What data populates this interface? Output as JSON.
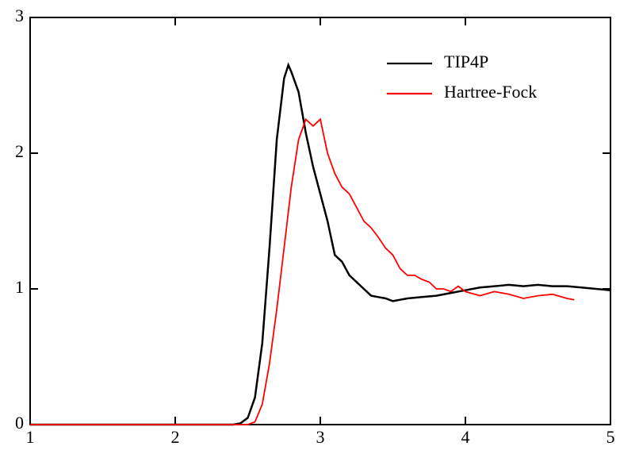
{
  "chart_data": {
    "type": "line",
    "xlim": [
      1,
      5
    ],
    "ylim": [
      0,
      3
    ],
    "xticks": [
      1,
      2,
      3,
      4,
      5
    ],
    "yticks": [
      0,
      1,
      2,
      3
    ],
    "legend": "upper-right",
    "series": [
      {
        "name": "TIP4P",
        "color": "#000000",
        "x": [
          1,
          1.5,
          2,
          2.4,
          2.45,
          2.5,
          2.55,
          2.6,
          2.65,
          2.7,
          2.75,
          2.78,
          2.8,
          2.85,
          2.9,
          2.95,
          3.0,
          3.05,
          3.1,
          3.15,
          3.2,
          3.25,
          3.3,
          3.35,
          3.4,
          3.45,
          3.5,
          3.55,
          3.6,
          3.7,
          3.8,
          3.9,
          4.0,
          4.1,
          4.2,
          4.3,
          4.4,
          4.5,
          4.6,
          4.7,
          4.8,
          4.9,
          5.0
        ],
        "values": [
          0,
          0,
          0,
          0,
          0.01,
          0.05,
          0.2,
          0.6,
          1.3,
          2.1,
          2.55,
          2.65,
          2.6,
          2.45,
          2.15,
          1.9,
          1.7,
          1.5,
          1.25,
          1.2,
          1.1,
          1.05,
          1.0,
          0.95,
          0.94,
          0.93,
          0.91,
          0.92,
          0.93,
          0.94,
          0.95,
          0.97,
          0.99,
          1.01,
          1.02,
          1.03,
          1.02,
          1.03,
          1.02,
          1.02,
          1.01,
          1.0,
          0.99
        ]
      },
      {
        "name": "Hartree-Fock",
        "color": "#ff0000",
        "x": [
          1,
          1.5,
          2,
          2.5,
          2.55,
          2.6,
          2.65,
          2.7,
          2.75,
          2.8,
          2.85,
          2.9,
          2.95,
          3.0,
          3.05,
          3.1,
          3.15,
          3.2,
          3.25,
          3.3,
          3.35,
          3.4,
          3.45,
          3.5,
          3.55,
          3.6,
          3.65,
          3.7,
          3.75,
          3.8,
          3.85,
          3.9,
          3.95,
          4.0,
          4.1,
          4.2,
          4.3,
          4.4,
          4.5,
          4.6,
          4.7,
          4.75
        ],
        "values": [
          0,
          0,
          0,
          0,
          0.02,
          0.15,
          0.45,
          0.85,
          1.3,
          1.75,
          2.1,
          2.25,
          2.2,
          2.25,
          2.0,
          1.85,
          1.75,
          1.7,
          1.6,
          1.5,
          1.45,
          1.38,
          1.3,
          1.25,
          1.15,
          1.1,
          1.1,
          1.07,
          1.05,
          1.0,
          1.0,
          0.98,
          1.02,
          0.98,
          0.95,
          0.98,
          0.96,
          0.93,
          0.95,
          0.96,
          0.93,
          0.92
        ]
      }
    ]
  }
}
